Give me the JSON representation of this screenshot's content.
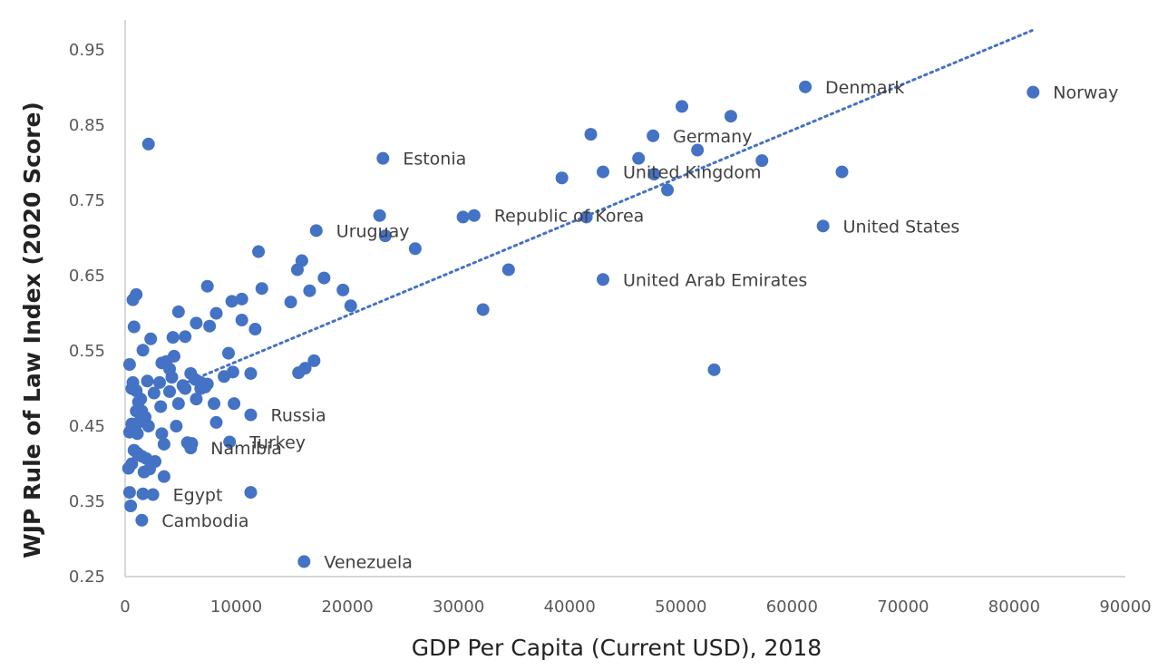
{
  "chart_data": {
    "type": "scatter",
    "title": "",
    "xlabel": "GDP Per Capita (Current USD), 2018",
    "ylabel": "WJP Rule of Law Index (2020 Score)",
    "xlim": [
      0,
      90000
    ],
    "ylim": [
      0.25,
      0.99
    ],
    "x_ticks": [
      0,
      10000,
      20000,
      30000,
      40000,
      50000,
      60000,
      70000,
      80000,
      90000
    ],
    "y_ticks": [
      0.25,
      0.35,
      0.45,
      0.55,
      0.65,
      0.75,
      0.85,
      0.95
    ],
    "x_tick_labels": [
      "0",
      "10000",
      "20000",
      "30000",
      "40000",
      "50000",
      "60000",
      "70000",
      "80000",
      "90000"
    ],
    "y_tick_labels": [
      "0.25",
      "0.35",
      "0.45",
      "0.55",
      "0.65",
      "0.75",
      "0.85",
      "0.95"
    ],
    "grid": false,
    "legend": "none",
    "marker_color": "#4472C4",
    "trendline": {
      "type": "linear",
      "style": "dotted",
      "color": "#4472C4",
      "from": [
        5500,
        0.508
      ],
      "to": [
        81600,
        0.976
      ]
    },
    "labeled_points": [
      {
        "label": "Denmark",
        "x": 61200,
        "y": 0.901
      },
      {
        "label": "Norway",
        "x": 81700,
        "y": 0.894
      },
      {
        "label": "Germany",
        "x": 47500,
        "y": 0.836
      },
      {
        "label": "Estonia",
        "x": 23200,
        "y": 0.806
      },
      {
        "label": "United Kingdom",
        "x": 43000,
        "y": 0.788
      },
      {
        "label": "Republic of Korea",
        "x": 31400,
        "y": 0.73
      },
      {
        "label": "United States",
        "x": 62800,
        "y": 0.716
      },
      {
        "label": "Uruguay",
        "x": 17200,
        "y": 0.71
      },
      {
        "label": "United Arab Emirates",
        "x": 43000,
        "y": 0.645
      },
      {
        "label": "Russia",
        "x": 11300,
        "y": 0.465
      },
      {
        "label": "Turkey",
        "x": 9400,
        "y": 0.429
      },
      {
        "label": "Namibia",
        "x": 5900,
        "y": 0.421
      },
      {
        "label": "Egypt",
        "x": 2500,
        "y": 0.359
      },
      {
        "label": "Cambodia",
        "x": 1500,
        "y": 0.325
      },
      {
        "label": "Venezuela",
        "x": 16100,
        "y": 0.27
      }
    ],
    "points": [
      [
        61200,
        0.901
      ],
      [
        81700,
        0.894
      ],
      [
        50100,
        0.875
      ],
      [
        54500,
        0.862
      ],
      [
        41900,
        0.838
      ],
      [
        47500,
        0.836
      ],
      [
        51500,
        0.817
      ],
      [
        46200,
        0.806
      ],
      [
        57300,
        0.803
      ],
      [
        23200,
        0.806
      ],
      [
        64500,
        0.788
      ],
      [
        43000,
        0.788
      ],
      [
        47600,
        0.785
      ],
      [
        39300,
        0.78
      ],
      [
        48800,
        0.764
      ],
      [
        2100,
        0.825
      ],
      [
        22900,
        0.73
      ],
      [
        30400,
        0.728
      ],
      [
        31400,
        0.73
      ],
      [
        41500,
        0.728
      ],
      [
        62800,
        0.716
      ],
      [
        17200,
        0.71
      ],
      [
        23400,
        0.703
      ],
      [
        26100,
        0.686
      ],
      [
        12000,
        0.682
      ],
      [
        15900,
        0.67
      ],
      [
        15500,
        0.658
      ],
      [
        34500,
        0.658
      ],
      [
        17900,
        0.647
      ],
      [
        43000,
        0.645
      ],
      [
        7400,
        0.636
      ],
      [
        12300,
        0.633
      ],
      [
        16600,
        0.63
      ],
      [
        19600,
        0.631
      ],
      [
        1000,
        0.625
      ],
      [
        700,
        0.618
      ],
      [
        10500,
        0.619
      ],
      [
        9600,
        0.616
      ],
      [
        14900,
        0.615
      ],
      [
        20300,
        0.61
      ],
      [
        32200,
        0.605
      ],
      [
        4800,
        0.602
      ],
      [
        8200,
        0.6
      ],
      [
        10500,
        0.591
      ],
      [
        6400,
        0.587
      ],
      [
        800,
        0.582
      ],
      [
        7600,
        0.583
      ],
      [
        11700,
        0.579
      ],
      [
        2300,
        0.566
      ],
      [
        4300,
        0.568
      ],
      [
        5400,
        0.569
      ],
      [
        1600,
        0.551
      ],
      [
        9300,
        0.547
      ],
      [
        4400,
        0.543
      ],
      [
        3300,
        0.534
      ],
      [
        3700,
        0.536
      ],
      [
        400,
        0.532
      ],
      [
        4000,
        0.526
      ],
      [
        5900,
        0.52
      ],
      [
        9700,
        0.522
      ],
      [
        11300,
        0.52
      ],
      [
        15600,
        0.521
      ],
      [
        16200,
        0.527
      ],
      [
        17000,
        0.537
      ],
      [
        53000,
        0.525
      ],
      [
        4200,
        0.515
      ],
      [
        6300,
        0.512
      ],
      [
        8900,
        0.516
      ],
      [
        2000,
        0.51
      ],
      [
        3100,
        0.508
      ],
      [
        5200,
        0.504
      ],
      [
        6800,
        0.508
      ],
      [
        7400,
        0.506
      ],
      [
        700,
        0.508
      ],
      [
        600,
        0.5
      ],
      [
        1000,
        0.497
      ],
      [
        2600,
        0.494
      ],
      [
        4000,
        0.496
      ],
      [
        5400,
        0.5
      ],
      [
        6800,
        0.5
      ],
      [
        7200,
        0.502
      ],
      [
        1400,
        0.486
      ],
      [
        1200,
        0.482
      ],
      [
        3200,
        0.476
      ],
      [
        4800,
        0.48
      ],
      [
        6400,
        0.486
      ],
      [
        8000,
        0.48
      ],
      [
        9800,
        0.48
      ],
      [
        1000,
        0.47
      ],
      [
        1500,
        0.47
      ],
      [
        1800,
        0.462
      ],
      [
        11300,
        0.465
      ],
      [
        600,
        0.453
      ],
      [
        900,
        0.449
      ],
      [
        1300,
        0.456
      ],
      [
        2100,
        0.45
      ],
      [
        4600,
        0.45
      ],
      [
        8200,
        0.455
      ],
      [
        400,
        0.442
      ],
      [
        1100,
        0.44
      ],
      [
        3300,
        0.44
      ],
      [
        3500,
        0.426
      ],
      [
        5600,
        0.428
      ],
      [
        6000,
        0.427
      ],
      [
        9400,
        0.429
      ],
      [
        5900,
        0.421
      ],
      [
        800,
        0.418
      ],
      [
        1100,
        0.414
      ],
      [
        1500,
        0.41
      ],
      [
        1900,
        0.407
      ],
      [
        600,
        0.4
      ],
      [
        2700,
        0.403
      ],
      [
        300,
        0.394
      ],
      [
        1700,
        0.389
      ],
      [
        2200,
        0.393
      ],
      [
        3500,
        0.383
      ],
      [
        400,
        0.362
      ],
      [
        1600,
        0.36
      ],
      [
        2500,
        0.359
      ],
      [
        11300,
        0.362
      ],
      [
        500,
        0.344
      ],
      [
        1500,
        0.325
      ],
      [
        16100,
        0.27
      ]
    ]
  }
}
